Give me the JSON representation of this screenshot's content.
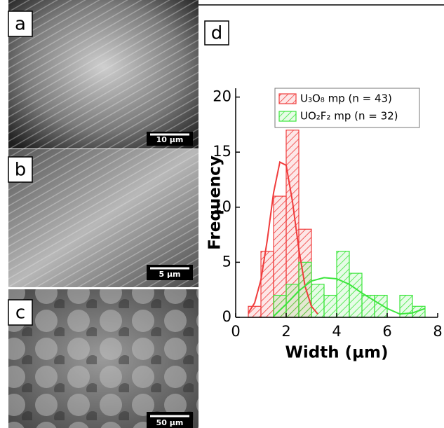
{
  "panels": [
    {
      "label": "a",
      "scale_bar": "10 µm"
    },
    {
      "label": "b",
      "scale_bar": "5 µm"
    },
    {
      "label": "c",
      "scale_bar": "50 µm"
    }
  ],
  "chart_data": {
    "type": "histogram",
    "label": "d",
    "xlabel": "Width (µm)",
    "ylabel": "Frequency",
    "xlim": [
      0,
      8
    ],
    "ylim": [
      0,
      20.8
    ],
    "xticks": [
      0,
      2,
      4,
      6,
      8
    ],
    "yticks": [
      0,
      5,
      10,
      15,
      20
    ],
    "legend": "top",
    "series": [
      {
        "name": "U₃O₈ mp (n = 43)",
        "color": "#f03c3c",
        "bins": [
          0.5,
          1,
          1.5,
          2,
          2.5,
          3
        ],
        "values": [
          1,
          6,
          11,
          17,
          8
        ]
      },
      {
        "name": "UO₂F₂ mp (n = 32)",
        "color": "#3ce63c",
        "bins": [
          1.5,
          2,
          2.5,
          3,
          3.5,
          4,
          4.5,
          5,
          5.5,
          6,
          6.5,
          7,
          7.5
        ],
        "values": [
          2,
          3,
          5,
          3,
          2,
          6,
          4,
          2,
          2,
          0,
          2,
          1
        ]
      }
    ],
    "fits": [
      {
        "color": "#f03c3c",
        "x": [
          0.5,
          0.75,
          1,
          1.25,
          1.5,
          1.75,
          2,
          2.25,
          2.5,
          2.75,
          3,
          3.25
        ],
        "values": [
          0.4,
          1.3,
          3.4,
          7,
          11.3,
          14.1,
          13.8,
          10.5,
          6.2,
          2.8,
          1,
          0.3
        ]
      },
      {
        "color": "#3ce63c",
        "x": [
          1.5,
          2,
          2.5,
          3,
          3.5,
          4,
          4.5,
          5,
          5.5,
          6,
          6.5,
          7,
          7.5
        ],
        "values": [
          0.1,
          1.2,
          2.4,
          3.3,
          3.6,
          3.5,
          3,
          2.2,
          1.5,
          0.8,
          0.3,
          0.4,
          0.8
        ]
      }
    ]
  }
}
